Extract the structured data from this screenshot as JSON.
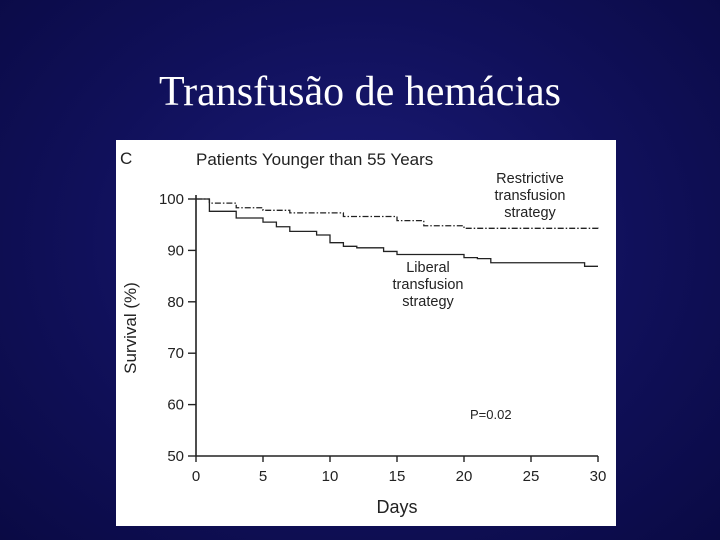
{
  "slide": {
    "title": "Transfusão de hemácias"
  },
  "colors": {
    "background": "#12125e",
    "figure_bg": "#ffffff",
    "ink": "#222222"
  },
  "chart_data": {
    "type": "line",
    "panel_label": "C",
    "title": "Patients Younger than 55 Years",
    "xlabel": "Days",
    "ylabel": "Survival (%)",
    "xlim": [
      0,
      30
    ],
    "ylim": [
      50,
      100
    ],
    "x_ticks": [
      "0",
      "5",
      "10",
      "15",
      "20",
      "25",
      "30"
    ],
    "y_ticks": [
      "100",
      "90",
      "80",
      "70",
      "60",
      "50"
    ],
    "grid": false,
    "annotation": "P=0.02",
    "series": [
      {
        "name": "Restrictive transfusion strategy",
        "label_lines": [
          "Restrictive",
          "transfusion",
          "strategy"
        ],
        "style": "dashed",
        "step": true,
        "points": [
          [
            0,
            100
          ],
          [
            1,
            99.2
          ],
          [
            3,
            98.3
          ],
          [
            5,
            97.8
          ],
          [
            7,
            97.3
          ],
          [
            11,
            96.6
          ],
          [
            15,
            95.8
          ],
          [
            17,
            94.8
          ],
          [
            20,
            94.3
          ],
          [
            30,
            94.2
          ]
        ]
      },
      {
        "name": "Liberal transfusion strategy",
        "label_lines": [
          "Liberal",
          "transfusion",
          "strategy"
        ],
        "style": "solid",
        "step": true,
        "points": [
          [
            0,
            100
          ],
          [
            1,
            97.6
          ],
          [
            3,
            96.3
          ],
          [
            5,
            95.5
          ],
          [
            6,
            94.6
          ],
          [
            7,
            93.7
          ],
          [
            9,
            93.0
          ],
          [
            10,
            91.5
          ],
          [
            11,
            90.8
          ],
          [
            12,
            90.5
          ],
          [
            14,
            89.8
          ],
          [
            15,
            89.2
          ],
          [
            20,
            88.6
          ],
          [
            21,
            88.4
          ],
          [
            22,
            87.6
          ],
          [
            29,
            86.9
          ],
          [
            30,
            86.9
          ]
        ]
      }
    ]
  }
}
